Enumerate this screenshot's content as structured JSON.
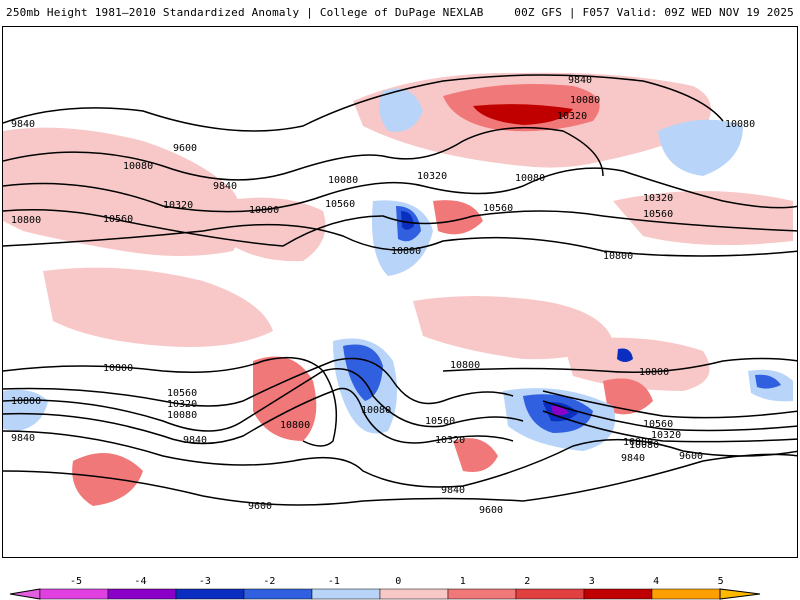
{
  "header": {
    "title": "250mb Height 1981–2010 Standardized Anomaly | College of DuPage NEXLAB",
    "run_info": "00Z GFS | F057 Valid: 09Z WED NOV 19 2025"
  },
  "map": {
    "contour_labels": [
      "9840",
      "10080",
      "10320",
      "9840",
      "9600",
      "10080",
      "9840",
      "10320",
      "10560",
      "10800",
      "10800",
      "10560",
      "10080",
      "10320",
      "10080",
      "10560",
      "10800",
      "10800",
      "10320",
      "10560",
      "10080",
      "10800",
      "10800",
      "10800",
      "10560",
      "10320",
      "10080",
      "9840",
      "10080",
      "10800",
      "10560",
      "10320",
      "10080",
      "9840",
      "9840",
      "9600",
      "10800",
      "10560",
      "10320",
      "10080",
      "9840",
      "9600",
      "9600"
    ]
  },
  "legend": {
    "ticks": [
      "-5",
      "-4",
      "-3",
      "-2",
      "-1",
      "0",
      "1",
      "2",
      "3",
      "4",
      "5"
    ],
    "colors": [
      "#e040e0",
      "#8a00c8",
      "#0a2ec0",
      "#3060e0",
      "#b8d4f8",
      "#ffffff",
      "#f8c8c8",
      "#f07878",
      "#e04040",
      "#c00000",
      "#ffa000"
    ],
    "end_low_color": "#e060e0",
    "end_high_color": "#ffb800"
  }
}
